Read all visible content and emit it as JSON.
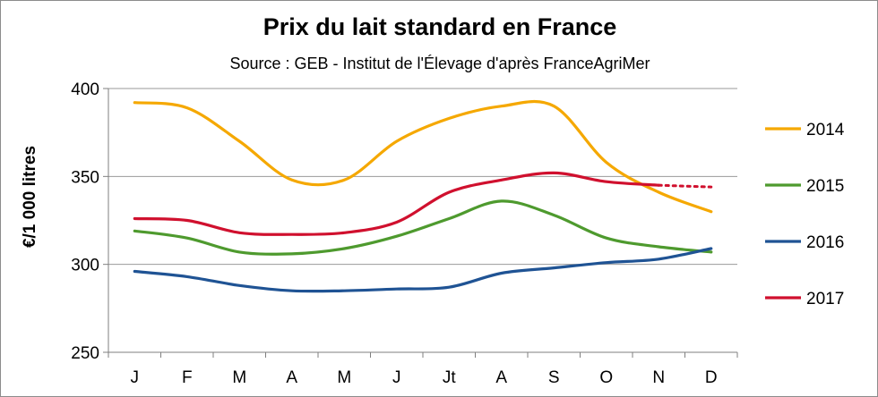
{
  "chart_data": {
    "type": "line",
    "title": "Prix du lait standard en France",
    "subtitle": "Source : GEB - Institut de l'Élevage  d'après  FranceAgriMer",
    "xlabel": "",
    "ylabel": "€/1 000 litres",
    "categories": [
      "J",
      "F",
      "M",
      "A",
      "M",
      "J",
      "Jt",
      "A",
      "S",
      "O",
      "N",
      "D"
    ],
    "ylim": [
      250,
      400
    ],
    "yticks": [
      "250",
      "300",
      "350",
      "400"
    ],
    "grid": true,
    "legend_position": "right",
    "series": [
      {
        "name": "2014",
        "color": "#F5A800",
        "values": [
          392,
          389,
          370,
          348,
          348,
          370,
          383,
          390,
          390,
          358,
          341,
          330
        ]
      },
      {
        "name": "2015",
        "color": "#4E9A2E",
        "values": [
          319,
          315,
          307,
          306,
          309,
          316,
          326,
          336,
          328,
          315,
          310,
          307
        ]
      },
      {
        "name": "2016",
        "color": "#1F5394",
        "values": [
          296,
          293,
          288,
          285,
          285,
          286,
          287,
          295,
          298,
          301,
          303,
          309
        ]
      },
      {
        "name": "2017",
        "color": "#D0102E",
        "values": [
          326,
          325,
          318,
          317,
          318,
          324,
          341,
          348,
          352,
          347,
          345,
          null
        ],
        "projection": {
          "from": 10,
          "to": 11,
          "value": 344
        }
      }
    ]
  }
}
